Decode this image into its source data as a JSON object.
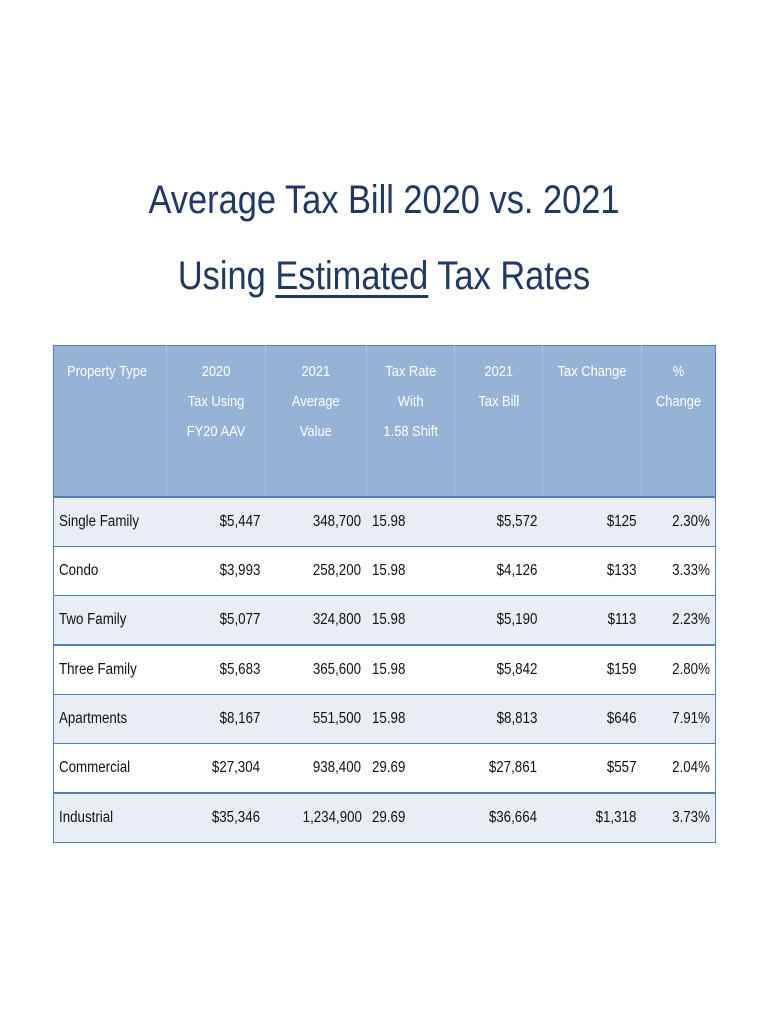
{
  "title": {
    "line1": "Average Tax Bill 2020 vs. 2021",
    "line2_prefix": "Using ",
    "line2_underlined": "Estimated",
    "line2_suffix": " Tax Rates"
  },
  "table": {
    "headers": [
      [
        "Property Type"
      ],
      [
        "2020",
        "Tax Using",
        "FY20 AAV"
      ],
      [
        "2021",
        "Average",
        "Value"
      ],
      [
        "Tax Rate",
        "With",
        "1.58 Shift"
      ],
      [
        "2021",
        "Tax Bill"
      ],
      [
        "Tax Change"
      ],
      [
        "% Change"
      ]
    ],
    "rows": [
      {
        "type": "Single Family",
        "tax2020": "$5,447",
        "avg_value": "348,700",
        "rate": "15.98",
        "bill2021": "$5,572",
        "change": "$125",
        "pct": "2.30%"
      },
      {
        "type": "Condo",
        "tax2020": "$3,993",
        "avg_value": "258,200",
        "rate": "15.98",
        "bill2021": "$4,126",
        "change": "$133",
        "pct": "3.33%"
      },
      {
        "type": "Two Family",
        "tax2020": "$5,077",
        "avg_value": "324,800",
        "rate": "15.98",
        "bill2021": "$5,190",
        "change": "$113",
        "pct": "2.23%"
      },
      {
        "type": "Three Family",
        "tax2020": "$5,683",
        "avg_value": "365,600",
        "rate": "15.98",
        "bill2021": "$5,842",
        "change": "$159",
        "pct": "2.80%"
      },
      {
        "type": "Apartments",
        "tax2020": "$8,167",
        "avg_value": "551,500",
        "rate": "15.98",
        "bill2021": "$8,813",
        "change": "$646",
        "pct": "7.91%"
      },
      {
        "type": "Commercial",
        "tax2020": "$27,304",
        "avg_value": "938,400",
        "rate": "29.69",
        "bill2021": "$27,861",
        "change": "$557",
        "pct": "2.04%"
      },
      {
        "type": "Industrial",
        "tax2020": "$35,346",
        "avg_value": "1,234,900",
        "rate": "29.69",
        "bill2021": "$36,664",
        "change": "$1,318",
        "pct": "3.73%"
      }
    ]
  },
  "colors": {
    "title": "#1f3864",
    "header_bg": "#95b3d7",
    "rule": "#4f81bd",
    "row_alt": "#e9edf4"
  }
}
